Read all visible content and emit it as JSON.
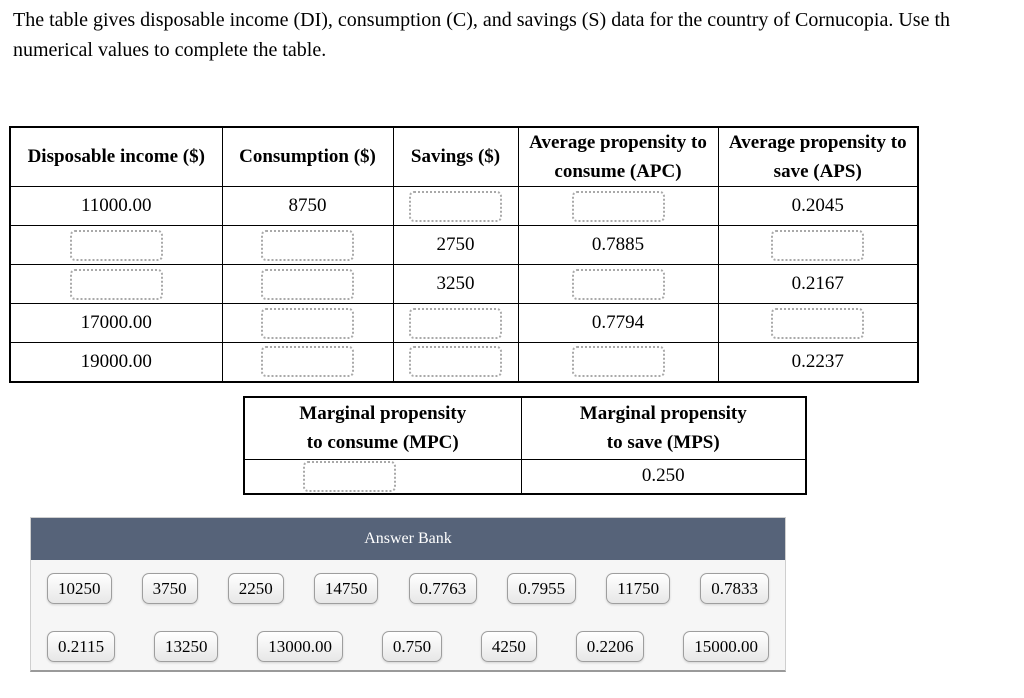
{
  "question": {
    "clipped_marker": ")",
    "line1": "The table gives disposable income (DI), consumption (C), and savings (S) data for the country of Cornucopia. Use th",
    "line2": "numerical values to complete the table."
  },
  "main_table": {
    "headers": [
      "Disposable income ($)",
      "Consumption ($)",
      "Savings ($)",
      "Average propensity to consume (APC)",
      "Average propensity to save (APS)"
    ],
    "rows": [
      [
        "11000.00",
        "8750",
        null,
        null,
        "0.2045"
      ],
      [
        null,
        null,
        "2750",
        "0.7885",
        null
      ],
      [
        null,
        null,
        "3250",
        null,
        "0.2167"
      ],
      [
        "17000.00",
        null,
        null,
        "0.7794",
        null
      ],
      [
        "19000.00",
        null,
        null,
        null,
        "0.2237"
      ]
    ]
  },
  "mpc_table": {
    "headers": [
      "Marginal propensity to consume (MPC)",
      "Marginal propensity to save (MPS)"
    ],
    "rows": [
      [
        null,
        "0.250"
      ]
    ]
  },
  "answer_bank": {
    "title": "Answer Bank",
    "rows": [
      [
        "10250",
        "3750",
        "2250",
        "14750",
        "0.7763",
        "0.7955",
        "11750",
        "0.7833"
      ],
      [
        "0.2115",
        "13250",
        "13000.00",
        "0.750",
        "4250",
        "0.2206",
        "15000.00"
      ]
    ]
  },
  "colors": {
    "answer_bank_header": "#566379",
    "drop_target_border": "#a9a9a9",
    "bank_body": "#f6f6f6"
  }
}
